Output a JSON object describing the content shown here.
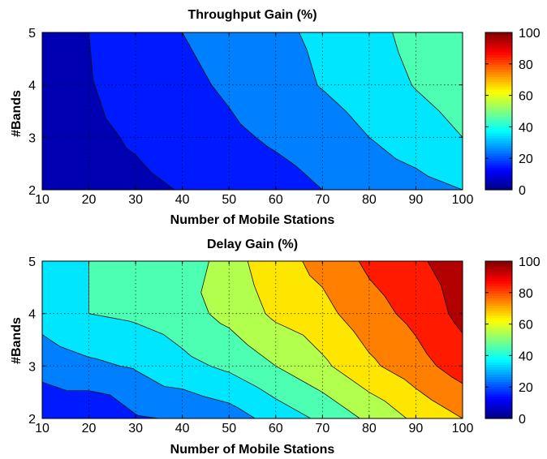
{
  "colors": {
    "jet": [
      "#000080",
      "#0000ff",
      "#0080ff",
      "#00ffff",
      "#80ff80",
      "#ffff00",
      "#ff8000",
      "#ff0000",
      "#800000"
    ]
  },
  "chart_data": [
    {
      "type": "heatmap",
      "subtype": "filled-contour",
      "title": "Throughput Gain (%)",
      "xlabel": "Number of Mobile Stations",
      "ylabel": "#Bands",
      "x": [
        10,
        20,
        30,
        40,
        50,
        60,
        70,
        80,
        90,
        100
      ],
      "y": [
        2,
        3,
        4,
        5
      ],
      "xlim": [
        10,
        100
      ],
      "ylim": [
        2,
        5
      ],
      "xticks": [
        "10",
        "20",
        "30",
        "40",
        "50",
        "60",
        "70",
        "80",
        "90",
        "100"
      ],
      "yticks": [
        "2",
        "3",
        "4",
        "5"
      ],
      "clim": [
        0,
        100
      ],
      "colorbar_ticks": [
        "0",
        "20",
        "40",
        "60",
        "80",
        "100"
      ],
      "contour_levels": [
        0,
        10,
        20,
        30,
        40,
        50
      ],
      "grid": true,
      "z": [
        [
          4,
          6,
          8,
          10.4,
          13,
          16,
          20,
          23,
          26.5,
          30
        ],
        [
          5,
          8,
          11,
          14,
          18,
          21.5,
          25,
          30,
          35,
          40
        ],
        [
          6,
          9.5,
          13.5,
          17.5,
          21.5,
          26,
          30.5,
          35,
          40.5,
          45
        ],
        [
          7,
          10,
          15,
          20,
          24,
          28,
          32,
          37,
          43,
          48
        ]
      ]
    },
    {
      "type": "heatmap",
      "subtype": "filled-contour",
      "title": "Delay Gain (%)",
      "xlabel": "Number of Mobile Stations",
      "ylabel": "#Bands",
      "x": [
        10,
        20,
        30,
        40,
        50,
        60,
        70,
        80,
        90,
        100
      ],
      "y": [
        2,
        3,
        4,
        5
      ],
      "xlim": [
        10,
        100
      ],
      "ylim": [
        2,
        5
      ],
      "xticks": [
        "10",
        "20",
        "30",
        "40",
        "50",
        "60",
        "70",
        "80",
        "90",
        "100"
      ],
      "yticks": [
        "2",
        "3",
        "4",
        "5"
      ],
      "clim": [
        0,
        100
      ],
      "colorbar_ticks": [
        "0",
        "20",
        "40",
        "60",
        "80",
        "100"
      ],
      "contour_levels": [
        10,
        20,
        30,
        40,
        50,
        60,
        70,
        80,
        90
      ],
      "grid": true,
      "z": [
        [
          11,
          11,
          19,
          21,
          25,
          34,
          42,
          52,
          62,
          70
        ],
        [
          24,
          28,
          31,
          37,
          42,
          50,
          58,
          68,
          76,
          85
        ],
        [
          34,
          40,
          42,
          46,
          53,
          62,
          67,
          76,
          83,
          93
        ],
        [
          38,
          40,
          41,
          42,
          56,
          66,
          73,
          82,
          88,
          96
        ]
      ]
    }
  ]
}
